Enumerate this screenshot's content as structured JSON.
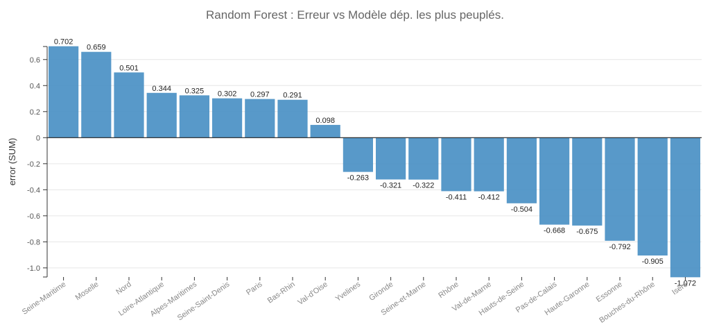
{
  "chart_data": {
    "type": "bar",
    "title": "Random Forest :  Erreur vs Modèle dép. les plus peuplés.",
    "xlabel": "",
    "ylabel": "error (SUM)",
    "ylim": [
      -1.07,
      0.7
    ],
    "yticks": [
      0.6,
      0.4,
      0.2,
      0,
      -0.2,
      -0.4,
      -0.6,
      -0.8,
      -1.0
    ],
    "ytick_labels": [
      "0.6",
      "0.4",
      "0.2",
      "0",
      "-0.2",
      "-0.4",
      "-0.6",
      "-0.8",
      "-1.0"
    ],
    "grid": true,
    "bar_color": "#4a90c4",
    "categories": [
      "Seine-Maritime",
      "Moselle",
      "Nord",
      "Loire-Atlantique",
      "Alpes-Maritimes",
      "Seine-Saint-Denis",
      "Paris",
      "Bas-Rhin",
      "Val-d'Oise",
      "Yvelines",
      "Gironde",
      "Seine-et-Marne",
      "Rhône",
      "Val-de-Marne",
      "Hauts-de-Seine",
      "Pas-de-Calais",
      "Haute-Garonne",
      "Essonne",
      "Bouches-du-Rhône",
      "Isère"
    ],
    "values": [
      0.702,
      0.659,
      0.501,
      0.344,
      0.325,
      0.302,
      0.297,
      0.291,
      0.098,
      -0.263,
      -0.321,
      -0.322,
      -0.411,
      -0.412,
      -0.504,
      -0.668,
      -0.675,
      -0.792,
      -0.905,
      -1.072
    ],
    "value_labels": [
      "0.702",
      "0.659",
      "0.501",
      "0.344",
      "0.325",
      "0.302",
      "0.297",
      "0.291",
      "0.098",
      "-0.263",
      "-0.321",
      "-0.322",
      "-0.411",
      "-0.412",
      "-0.504",
      "-0.668",
      "-0.675",
      "-0.792",
      "-0.905",
      "-1.072"
    ]
  }
}
